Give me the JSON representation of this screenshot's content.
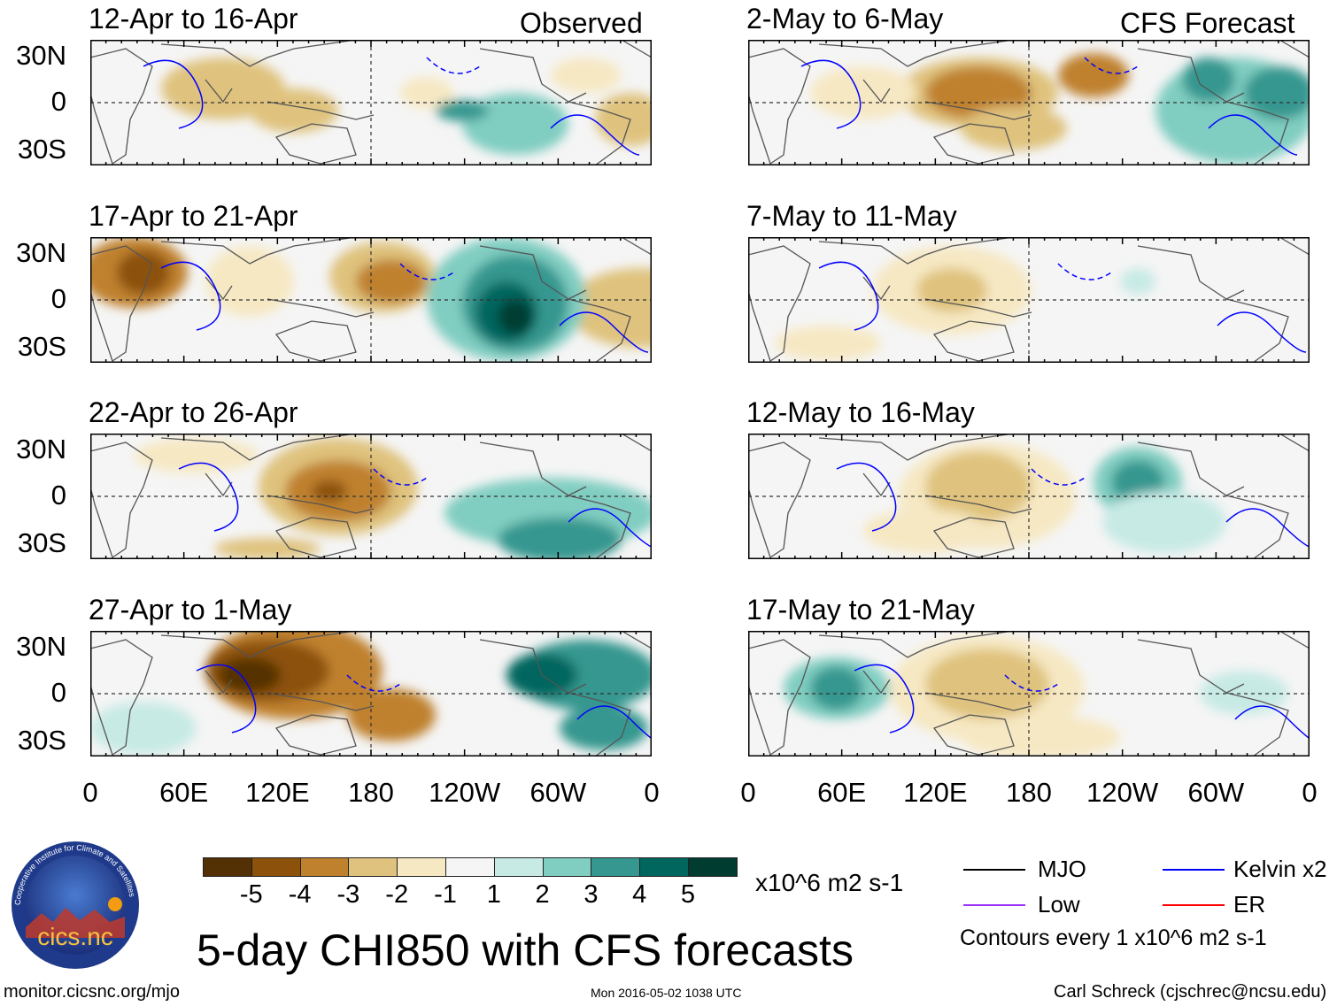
{
  "headers": {
    "observed": "Observed",
    "forecast": "CFS Forecast"
  },
  "observed_panels": [
    {
      "title": "12-Apr to 16-Apr"
    },
    {
      "title": "17-Apr to 21-Apr"
    },
    {
      "title": "22-Apr to 26-Apr"
    },
    {
      "title": "27-Apr to 1-May"
    }
  ],
  "forecast_panels": [
    {
      "title": "2-May to 6-May"
    },
    {
      "title": "7-May to 11-May"
    },
    {
      "title": "12-May to 16-May"
    },
    {
      "title": "17-May to 21-May"
    }
  ],
  "lat_labels": [
    "30N",
    "0",
    "30S"
  ],
  "lon_labels": [
    "0",
    "60E",
    "120E",
    "180",
    "120W",
    "60W",
    "0"
  ],
  "colorbar": {
    "colors": [
      "#543005",
      "#8c510a",
      "#bf812d",
      "#dfc27d",
      "#f6e8c3",
      "#f5f5f5",
      "#c7eae5",
      "#80cdc1",
      "#35978f",
      "#01665e",
      "#003c30"
    ],
    "labels": [
      "-5",
      "-4",
      "-3",
      "-2",
      "-1",
      "1",
      "2",
      "3",
      "4",
      "5"
    ],
    "units": "x10^6 m2 s-1"
  },
  "title": "5-day CHI850 with CFS forecasts",
  "legend": {
    "items": [
      {
        "label": "MJO",
        "color": "#000000"
      },
      {
        "label": "Kelvin x2",
        "color": "#0000ff"
      },
      {
        "label": "Low",
        "color": "#9b30ff"
      },
      {
        "label": "ER",
        "color": "#ff0000"
      }
    ],
    "note": "Contours every 1 x10^6 m2 s-1"
  },
  "logo_text": "cics.nc",
  "logo_ring_text": "Cooperative Institute for Climate and Satellites",
  "footer": {
    "url": "monitor.cicsnc.org/mjo",
    "timestamp": "Mon 2016-05-02 1038 UTC",
    "credit": "Carl Schreck (cjschrec@ncsu.edu)"
  }
}
